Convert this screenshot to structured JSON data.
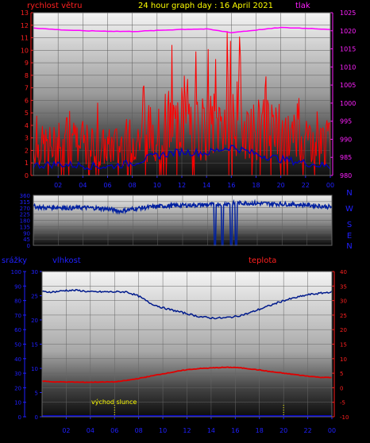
{
  "colors": {
    "wind": "#ff0000",
    "wind_avg": "#0000c0",
    "pressure": "#ff00ff",
    "direction": "#0020a0",
    "humidity": "#001a8c",
    "temperature": "#e00000",
    "rain": "#0000ff",
    "title": "#ffff00",
    "sun": "#ffff00",
    "label_blue": "#2020ff",
    "label_red": "#ff2020"
  },
  "chart_data": [
    {
      "type": "line",
      "title": "24 hour graph day : 16 April 2021",
      "ylabel_left": "rychlost větru",
      "ylabel_right": "tlak",
      "x_ticks": [
        "02",
        "04",
        "06",
        "08",
        "10",
        "12",
        "14",
        "16",
        "18",
        "20",
        "22",
        "00"
      ],
      "y_left_ticks": [
        "0",
        "1",
        "2",
        "3",
        "4",
        "5",
        "6",
        "7",
        "8",
        "9",
        "10",
        "11",
        "12",
        "13"
      ],
      "y_right_ticks": [
        "980",
        "985",
        "990",
        "995",
        "1000",
        "1005",
        "1010",
        "1015",
        "1020",
        "1025"
      ],
      "ylim_left": [
        0,
        13
      ],
      "ylim_right": [
        980,
        1025
      ],
      "series": [
        {
          "name": "rychlost větru",
          "hours": [
            0,
            1,
            2,
            3,
            4,
            5,
            6,
            7,
            8,
            9,
            10,
            11,
            12,
            13,
            14,
            15,
            16,
            17,
            18,
            19,
            20,
            21,
            22,
            23,
            24
          ],
          "values": [
            2.2,
            2.4,
            2.3,
            2.5,
            2.4,
            2.4,
            2.2,
            2.5,
            2.8,
            3.2,
            3.8,
            4.1,
            4.2,
            4.0,
            3.9,
            4.2,
            4.8,
            4.3,
            3.8,
            3.6,
            3.3,
            3.1,
            3.0,
            2.7,
            2.6
          ]
        },
        {
          "name": "průměr větru",
          "hours": [
            0,
            2,
            4,
            6,
            8,
            10,
            12,
            14,
            16,
            18,
            20,
            22,
            24
          ],
          "values": [
            0.8,
            0.9,
            0.8,
            0.7,
            1.0,
            1.6,
            1.9,
            1.8,
            2.3,
            1.7,
            1.3,
            1.0,
            0.7
          ]
        },
        {
          "name": "tlak",
          "hours": [
            0,
            2,
            4,
            6,
            8,
            10,
            12,
            14,
            16,
            18,
            20,
            22,
            24
          ],
          "values": [
            1020.8,
            1020.3,
            1020.0,
            1019.9,
            1019.8,
            1020.1,
            1020.4,
            1020.5,
            1019.5,
            1020.2,
            1020.9,
            1020.7,
            1020.4
          ]
        }
      ]
    },
    {
      "type": "line",
      "y_ticks": [
        "360",
        "315",
        "270",
        "225",
        "180",
        "135",
        "90",
        "45",
        "0"
      ],
      "ylim": [
        0,
        360
      ],
      "compass": [
        "N",
        "W",
        "S",
        "E",
        "N"
      ],
      "series": [
        {
          "name": "směr větru",
          "hours": [
            0,
            1,
            2,
            3,
            4,
            5,
            6,
            7,
            8,
            9,
            10,
            11,
            12,
            13,
            14,
            15,
            16,
            17,
            18,
            19,
            20,
            21,
            22,
            23,
            24
          ],
          "values": [
            280,
            270,
            275,
            268,
            272,
            268,
            262,
            245,
            262,
            272,
            280,
            285,
            288,
            290,
            292,
            298,
            302,
            305,
            302,
            300,
            298,
            294,
            290,
            283,
            275
          ],
          "dips_to_zero_hours": [
            14.6,
            15.2,
            15.9,
            16.3
          ]
        }
      ]
    },
    {
      "type": "line",
      "x_ticks": [
        "02",
        "04",
        "06",
        "08",
        "10",
        "12",
        "14",
        "16",
        "18",
        "20",
        "22",
        "00"
      ],
      "y_left_ticks": [
        "0",
        "10",
        "20",
        "30",
        "40",
        "50",
        "60",
        "70",
        "80",
        "90",
        "100"
      ],
      "y_left2_ticks": [
        "0",
        "5",
        "10",
        "15",
        "20",
        "25",
        "30"
      ],
      "y_right_ticks": [
        "-10",
        "-5",
        "0",
        "5",
        "10",
        "15",
        "20",
        "25",
        "30",
        "35",
        "40"
      ],
      "ylim_left": [
        0,
        100
      ],
      "ylim_left2": [
        0,
        30
      ],
      "ylim_right": [
        -10,
        40
      ],
      "label_rain": "srážky",
      "label_humidity": "vlhkost",
      "label_temperature": "teplota",
      "annotation": "východ slunce",
      "sunrise_hour": 6.0,
      "sunset_hour": 20.0,
      "series": [
        {
          "name": "vlhkost",
          "hours": [
            0,
            1,
            2,
            3,
            4,
            5,
            6,
            7,
            8,
            9,
            10,
            11,
            12,
            13,
            14,
            15,
            16,
            17,
            18,
            19,
            20,
            21,
            22,
            23,
            24
          ],
          "values": [
            86,
            86,
            87,
            87,
            86,
            86,
            86,
            86,
            83,
            78,
            75,
            73,
            71,
            69,
            68,
            68,
            69,
            71,
            74,
            77,
            80,
            82,
            84,
            85,
            86
          ]
        },
        {
          "name": "teplota",
          "hours": [
            0,
            1,
            2,
            3,
            4,
            5,
            6,
            7,
            8,
            9,
            10,
            11,
            12,
            13,
            14,
            15,
            16,
            17,
            18,
            19,
            20,
            21,
            22,
            23,
            24
          ],
          "values": [
            2.3,
            2.0,
            2.0,
            1.9,
            1.9,
            2.0,
            2.0,
            2.5,
            3.2,
            4.0,
            4.8,
            5.5,
            6.2,
            6.6,
            6.8,
            7.0,
            7.0,
            6.6,
            6.1,
            5.5,
            5.0,
            4.5,
            4.0,
            3.6,
            3.5
          ]
        },
        {
          "name": "srážky",
          "hours": [
            0,
            24
          ],
          "values": [
            0,
            0
          ]
        }
      ]
    }
  ]
}
